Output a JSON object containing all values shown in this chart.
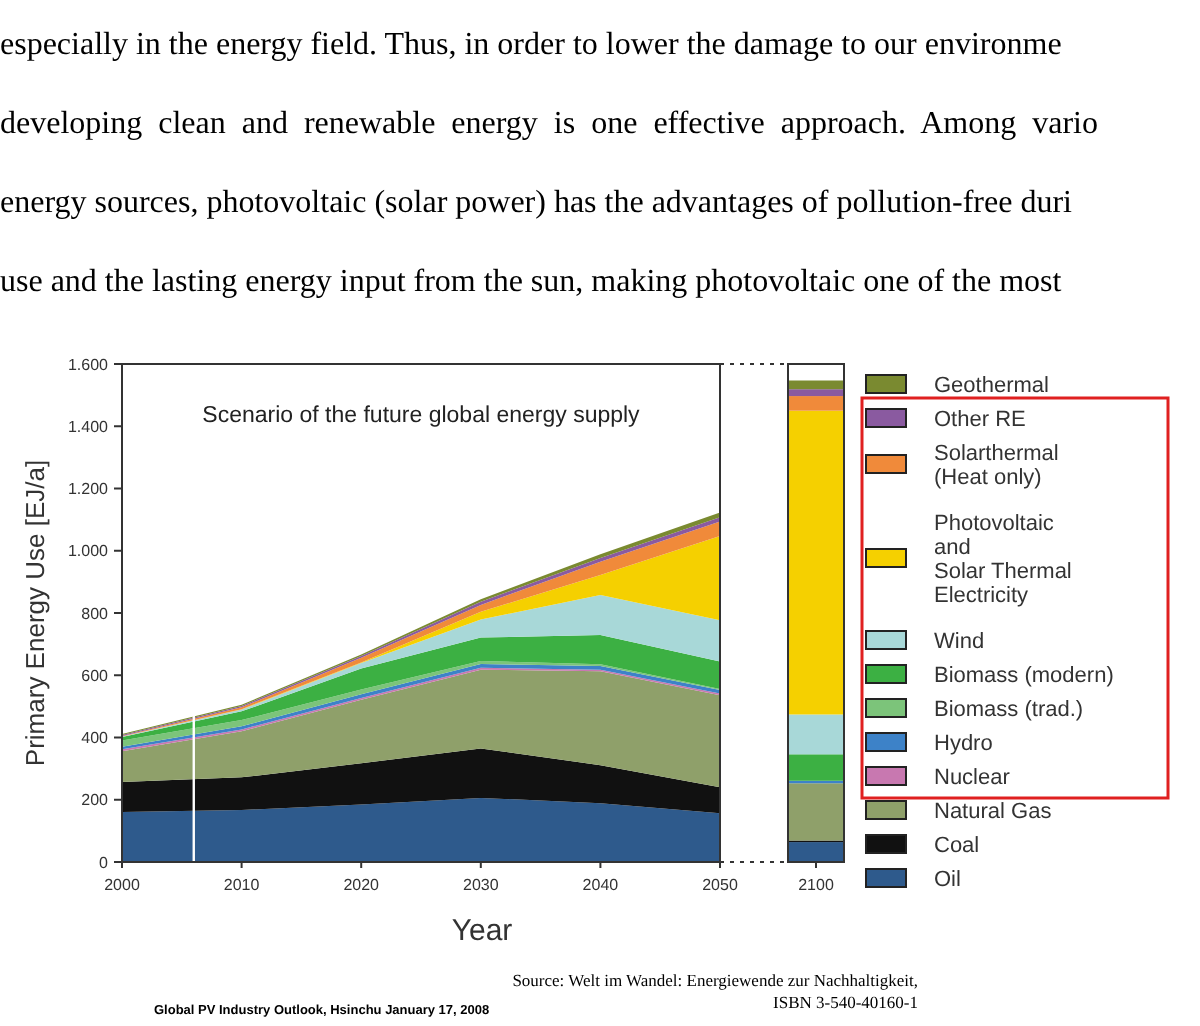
{
  "chart_data": [
    {
      "type": "area",
      "stacked": true,
      "title": "Scenario of the future global energy supply",
      "ylabel": "Primary Energy Use [EJ/a]",
      "xlabel": "Year",
      "x": [
        2000,
        2010,
        2020,
        2030,
        2040,
        2050
      ],
      "xlim": [
        2000,
        2050
      ],
      "xticks": [
        2000,
        2010,
        2020,
        2030,
        2040,
        2050
      ],
      "ylim": [
        0,
        1600
      ],
      "yticks": [
        0,
        200,
        400,
        600,
        800,
        {
          "value": 1000,
          "label": "1.000"
        },
        {
          "value": 1200,
          "label": "1.200"
        },
        {
          "value": 1400,
          "label": "1.400"
        },
        {
          "value": 1600,
          "label": "1.600"
        }
      ],
      "ref_lines": [
        {
          "axis": "x",
          "value": 2006,
          "color": "#ffffff"
        }
      ],
      "annotations": [
        "especially in the energy field. Thus, in order to lower the damage to our environme",
        "developing  clean  and  renewable  energy  is  one  effective  approach.  Among  vario",
        "energy sources, photovoltaic (solar power) has the advantages of pollution-free duri",
        "use and the lasting energy input from the sun, making photovoltaic one of the most"
      ],
      "series": [
        {
          "color": "#2e5a8c",
          "values": [
            161,
            167,
            185,
            206,
            189,
            157
          ]
        },
        {
          "color": "#111111",
          "values": [
            96,
            105,
            132,
            159,
            122,
            83
          ]
        },
        {
          "color": "#8fa06a",
          "values": [
            99,
            148,
            204,
            253,
            302,
            296
          ]
        },
        {
          "color": "#c878b0",
          "values": [
            6,
            6,
            6,
            6,
            5,
            5
          ]
        },
        {
          "color": "#3d82c8",
          "values": [
            8,
            10,
            12,
            12,
            12,
            12
          ]
        },
        {
          "color": "#7cc47a",
          "values": [
            20,
            20,
            15,
            10,
            5,
            3
          ]
        },
        {
          "color": "#3cb043",
          "values": [
            12,
            28,
            68,
            75,
            94,
            88
          ]
        },
        {
          "color": "#a8d8d8",
          "values": [
            1,
            6,
            17,
            58,
            129,
            133
          ]
        },
        {
          "color": "#f5d000",
          "values": [
            0,
            1,
            2,
            25,
            64,
            270
          ]
        },
        {
          "color": "#f08a3a",
          "values": [
            2,
            6,
            15,
            22,
            43,
            47
          ]
        },
        {
          "color": "#8a5aa0",
          "values": [
            3,
            4,
            6,
            10,
            12,
            14
          ]
        },
        {
          "color": "#7a8a30",
          "values": [
            3,
            4,
            5,
            8,
            12,
            15
          ]
        }
      ]
    },
    {
      "type": "bar",
      "stacked": true,
      "categories": [
        "2100"
      ],
      "ylim": [
        0,
        1600
      ],
      "tick_labels": "x",
      "legend": "right",
      "annotations": [
        "Global PV Industry Outlook, Hsinchu January 17, 2008",
        "Source: Welt im Wandel: Energiewende zur Nachhaltigkeit,",
        "ISBN 3-540-40160-1"
      ],
      "series": [
        {
          "name": "Oil",
          "color": "#2e5a8c",
          "values": [
            64
          ]
        },
        {
          "name": "Coal",
          "color": "#111111",
          "values": [
            5
          ]
        },
        {
          "name": "Natural Gas",
          "color": "#8fa06a",
          "values": [
            184
          ]
        },
        {
          "name": "Nuclear",
          "color": "#c878b0",
          "values": [
            null
          ]
        },
        {
          "name": "Hydro",
          "color": "#3d82c8",
          "values": [
            8
          ]
        },
        {
          "name": "Biomass (trad.)",
          "color": "#7cc47a",
          "values": [
            null
          ]
        },
        {
          "name": "Biomass (modern)",
          "color": "#3cb043",
          "values": [
            85
          ]
        },
        {
          "name": "Wind",
          "color": "#a8d8d8",
          "values": [
            128
          ]
        },
        {
          "name": "Photovoltaic\nand\nSolar Thermal\nElectricity",
          "color": "#f5d000",
          "values": [
            976
          ]
        },
        {
          "name": "Solarthermal\n(Heat only)",
          "color": "#f08a3a",
          "values": [
            47
          ]
        },
        {
          "name": "Other RE",
          "color": "#8a5aa0",
          "values": [
            22
          ]
        },
        {
          "name": "Geothermal",
          "color": "#7a8a30",
          "values": [
            28
          ]
        }
      ]
    }
  ]
}
